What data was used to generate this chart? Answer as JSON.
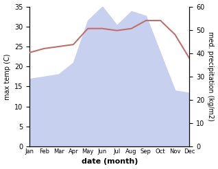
{
  "months": [
    "Jan",
    "Feb",
    "Mar",
    "Apr",
    "May",
    "Jun",
    "Jul",
    "Aug",
    "Sep",
    "Oct",
    "Nov",
    "Dec"
  ],
  "x": [
    0,
    1,
    2,
    3,
    4,
    5,
    6,
    7,
    8,
    9,
    10,
    11
  ],
  "temp": [
    23.5,
    24.5,
    25.0,
    25.5,
    29.5,
    29.5,
    29.0,
    29.5,
    31.5,
    31.5,
    28.0,
    22.0
  ],
  "precip": [
    29,
    30,
    31,
    36,
    54,
    60,
    52,
    58,
    56,
    40,
    24,
    23
  ],
  "temp_color": "#c0706a",
  "precip_fill_color": "#c8d0f0",
  "ylim_left": [
    0,
    35
  ],
  "ylim_right": [
    0,
    60
  ],
  "xlabel": "date (month)",
  "ylabel_left": "max temp (C)",
  "ylabel_right": "med. precipitation (kg/m2)",
  "background_color": "#ffffff"
}
